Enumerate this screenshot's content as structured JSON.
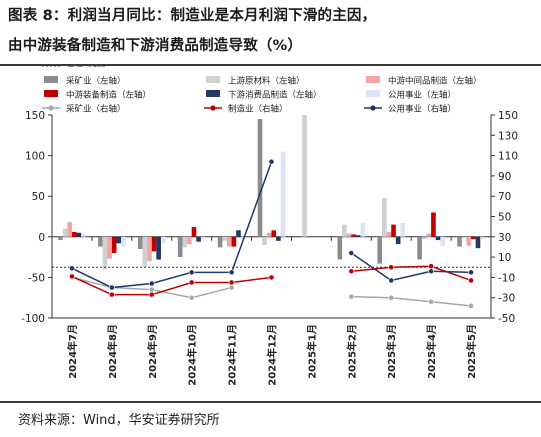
{
  "title_line1": "图表 8：利润当月同比：制造业是本月利润下滑的主因，",
  "title_line2": "由中游装备制造和下游消费品制造导致（%）",
  "source": "资料来源：Wind，华安证券研究所",
  "chart_data": {
    "type": "bar",
    "categories": [
      "2024年7月",
      "2024年8月",
      "2024年9月",
      "2024年10月",
      "2024年11月",
      "2024年12月",
      "2025年1月",
      "2025年2月",
      "2025年3月",
      "2025年4月",
      "2025年5月"
    ],
    "left_axis": {
      "ylim": [
        -100,
        150
      ],
      "ticks": [
        -100,
        -50,
        0,
        50,
        100,
        150
      ]
    },
    "right_axis": {
      "ylim": [
        -50,
        150
      ],
      "ticks": [
        -50,
        -30,
        -10,
        10,
        30,
        50,
        70,
        90,
        110,
        130,
        150
      ]
    },
    "bar_series": [
      {
        "name": "采矿业（左轴）",
        "color": "#8c8c8c",
        "values": [
          -4,
          -12,
          -15,
          -25,
          -13,
          145,
          null,
          -28,
          -33,
          -28,
          -12
        ]
      },
      {
        "name": "上游原材料（左轴）",
        "color": "#d0d0d0",
        "values": [
          10,
          -40,
          -37,
          -13,
          -5,
          -10,
          500,
          15,
          48,
          -3,
          -2
        ]
      },
      {
        "name": "中游中间品制造（左轴）",
        "color": "#f5a3a3",
        "values": [
          18,
          -27,
          -30,
          -9,
          -12,
          5,
          null,
          4,
          6,
          4,
          -11
        ]
      },
      {
        "name": "中游装备制造（左轴）",
        "color": "#c00000",
        "values": [
          6,
          -20,
          -18,
          12,
          -12,
          8,
          null,
          3,
          15,
          30,
          -3
        ]
      },
      {
        "name": "下游消费品制造（左轴）",
        "color": "#1f3864",
        "values": [
          5,
          -8,
          -28,
          -6,
          8,
          -5,
          null,
          2,
          -9,
          -4,
          -14
        ]
      },
      {
        "name": "公用事业（左轴）",
        "color": "#dde3f2",
        "values": [
          4,
          -12,
          -8,
          -3,
          -3,
          105,
          null,
          17,
          17,
          -12,
          -3
        ]
      }
    ],
    "line_series": [
      {
        "name": "采矿业（右轴）",
        "color": "#a6a6a6",
        "marker": "circle-filled",
        "values": [
          -10,
          -20,
          -22,
          -30,
          -20,
          null,
          null,
          -29,
          -30,
          -34,
          -38
        ]
      },
      {
        "name": "制造业（右轴）",
        "color": "#c00000",
        "marker": "circle-filled",
        "values": [
          -9,
          -27,
          -27,
          -15,
          -15,
          -10,
          null,
          -4,
          0,
          1,
          -13
        ]
      },
      {
        "name": "公用事业（右轴）",
        "color": "#1f3864",
        "marker": "circle-filled",
        "values": [
          -1,
          -20,
          -16,
          -5,
          -5,
          104,
          null,
          14,
          -13,
          -4,
          -5
        ]
      }
    ],
    "reference_line": {
      "name": "右轴0刻度",
      "axis": "right",
      "value": 0,
      "style": "dashed"
    },
    "legend_placement": "top",
    "grid": false
  }
}
